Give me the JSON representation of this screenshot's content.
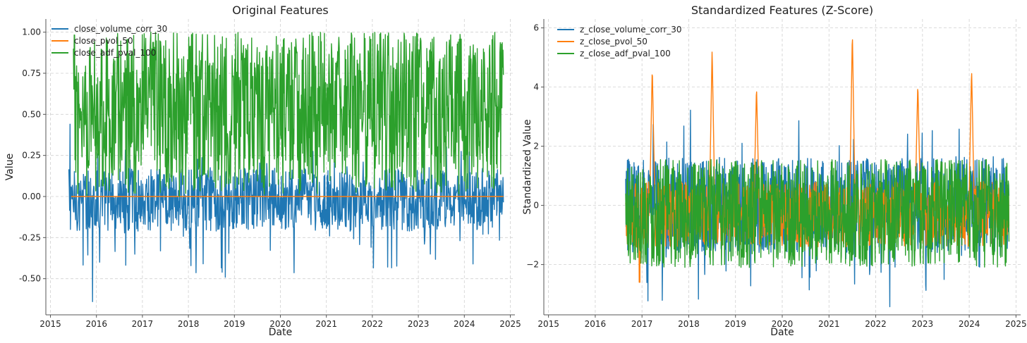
{
  "chart_data": [
    {
      "type": "line",
      "title": "Original Features",
      "xlabel": "Date",
      "ylabel": "Value",
      "xlim": [
        2014.9,
        2025.1
      ],
      "ylim": [
        -0.72,
        1.08
      ],
      "x_ticks": [
        "2015",
        "2016",
        "2017",
        "2018",
        "2019",
        "2020",
        "2021",
        "2022",
        "2023",
        "2024",
        "2025"
      ],
      "y_ticks": [
        "-0.50",
        "-0.25",
        "0.00",
        "0.25",
        "0.50",
        "0.75",
        "1.00"
      ],
      "y_tick_values": [
        -0.5,
        -0.25,
        0.0,
        0.25,
        0.5,
        0.75,
        1.0
      ],
      "grid": true,
      "legend_position": "top-left",
      "series": [
        {
          "name": "close_volume_corr_30",
          "color": "#1f77b4",
          "x_start": 2015.4,
          "x_end": 2024.85,
          "approx_center": -0.02,
          "approx_spread": 0.12,
          "observed_min": -0.64,
          "observed_max": 0.44
        },
        {
          "name": "close_pvol_50",
          "color": "#ff7f0e",
          "x_start": 2015.45,
          "x_end": 2024.85,
          "approx_value": 0.0
        },
        {
          "name": "close_adf_pval_100",
          "color": "#2ca02c",
          "x_start": 2015.5,
          "x_end": 2024.85,
          "approx_range": [
            0.0,
            1.0
          ]
        }
      ]
    },
    {
      "type": "line",
      "title": "Standardized Features (Z-Score)",
      "xlabel": "Date",
      "ylabel": "Standardized Value",
      "xlim": [
        2014.9,
        2025.1
      ],
      "ylim": [
        -3.7,
        6.3
      ],
      "x_ticks": [
        "2015",
        "2016",
        "2017",
        "2018",
        "2019",
        "2020",
        "2021",
        "2022",
        "2023",
        "2024",
        "2025"
      ],
      "y_ticks": [
        "−2",
        "0",
        "2",
        "4",
        "6"
      ],
      "y_tick_values": [
        -2,
        0,
        2,
        4,
        6
      ],
      "grid": true,
      "legend_position": "top-left",
      "series": [
        {
          "name": "z_close_volume_corr_30",
          "color": "#1f77b4",
          "x_start": 2016.65,
          "x_end": 2024.85,
          "approx_center": 0.0,
          "approx_spread": 1.0,
          "observed_min": -3.4,
          "observed_max": 3.3
        },
        {
          "name": "z_close_pvol_50",
          "color": "#ff7f0e",
          "x_start": 2016.65,
          "x_end": 2024.85,
          "spikes": [
            {
              "x": 2017.22,
              "y": 4.7
            },
            {
              "x": 2018.5,
              "y": 5.3
            },
            {
              "x": 2019.45,
              "y": 4.05
            },
            {
              "x": 2021.5,
              "y": 5.9
            },
            {
              "x": 2022.9,
              "y": 4.15
            },
            {
              "x": 2024.05,
              "y": 4.65
            }
          ],
          "observed_min": -2.6
        },
        {
          "name": "z_close_adf_pval_100",
          "color": "#2ca02c",
          "x_start": 2016.65,
          "x_end": 2024.85,
          "approx_range": [
            -2.1,
            1.55
          ]
        }
      ]
    }
  ]
}
